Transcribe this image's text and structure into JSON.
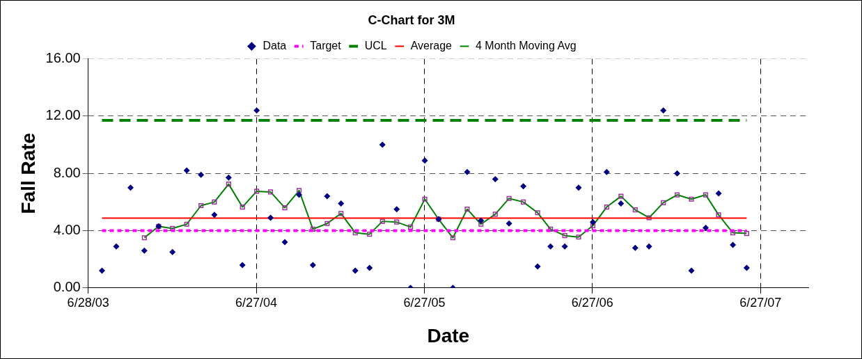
{
  "chart_data": {
    "type": "line",
    "title": "C-Chart for 3M",
    "xlabel": "Date",
    "ylabel": "Fall Rate",
    "x": [
      "2003-07-28",
      "2003-08-28",
      "2003-09-28",
      "2003-10-28",
      "2003-11-28",
      "2003-12-28",
      "2004-01-28",
      "2004-02-28",
      "2004-03-28",
      "2004-04-28",
      "2004-05-28",
      "2004-06-28",
      "2004-07-28",
      "2004-08-28",
      "2004-09-28",
      "2004-10-28",
      "2004-11-28",
      "2004-12-28",
      "2005-01-28",
      "2005-02-28",
      "2005-03-28",
      "2005-04-28",
      "2005-05-28",
      "2005-06-28",
      "2005-07-28",
      "2005-08-28",
      "2005-09-28",
      "2005-10-28",
      "2005-11-28",
      "2005-12-28",
      "2006-01-28",
      "2006-02-28",
      "2006-03-28",
      "2006-04-28",
      "2006-05-28",
      "2006-06-28",
      "2006-07-28",
      "2006-08-28",
      "2006-09-28",
      "2006-10-28",
      "2006-11-28",
      "2006-12-28",
      "2007-01-28",
      "2007-02-28",
      "2007-03-28",
      "2007-04-28",
      "2007-05-28"
    ],
    "series": [
      {
        "name": "Data",
        "type": "scatter",
        "marker": "diamond",
        "color": "#000080",
        "values": [
          1.2,
          2.9,
          7.0,
          2.6,
          4.3,
          2.5,
          8.2,
          7.9,
          5.1,
          7.7,
          1.6,
          12.4,
          4.9,
          3.2,
          6.5,
          1.6,
          6.4,
          5.9,
          1.2,
          1.4,
          10.0,
          5.5,
          0.0,
          8.9,
          4.8,
          0.0,
          8.1,
          4.7,
          7.6,
          4.5,
          7.1,
          1.5,
          2.9,
          2.9,
          7.0,
          4.6,
          8.1,
          5.9,
          2.8,
          2.9,
          12.4,
          8.0,
          1.2,
          4.2,
          6.6,
          3.0,
          1.4
        ]
      },
      {
        "name": "Target",
        "type": "line",
        "marker": "none",
        "line_style": "dotted",
        "color": "#ff00ff",
        "values": [
          4.0,
          4.0,
          4.0,
          4.0,
          4.0,
          4.0,
          4.0,
          4.0,
          4.0,
          4.0,
          4.0,
          4.0,
          4.0,
          4.0,
          4.0,
          4.0,
          4.0,
          4.0,
          4.0,
          4.0,
          4.0,
          4.0,
          4.0,
          4.0,
          4.0,
          4.0,
          4.0,
          4.0,
          4.0,
          4.0,
          4.0,
          4.0,
          4.0,
          4.0,
          4.0,
          4.0,
          4.0,
          4.0,
          4.0,
          4.0,
          4.0,
          4.0,
          4.0,
          4.0,
          4.0,
          4.0,
          4.0
        ]
      },
      {
        "name": "UCL",
        "type": "line",
        "marker": "none",
        "line_style": "dashed",
        "color": "#008000",
        "values": [
          11.7,
          11.7,
          11.7,
          11.7,
          11.7,
          11.7,
          11.7,
          11.7,
          11.7,
          11.7,
          11.7,
          11.7,
          11.7,
          11.7,
          11.7,
          11.7,
          11.7,
          11.7,
          11.7,
          11.7,
          11.7,
          11.7,
          11.7,
          11.7,
          11.7,
          11.7,
          11.7,
          11.7,
          11.7,
          11.7,
          11.7,
          11.7,
          11.7,
          11.7,
          11.7,
          11.7,
          11.7,
          11.7,
          11.7,
          11.7,
          11.7,
          11.7,
          11.7,
          11.7,
          11.7,
          11.7,
          11.7
        ]
      },
      {
        "name": "Average",
        "type": "line",
        "marker": "none",
        "line_style": "solid",
        "color": "#ff0000",
        "values": [
          4.87,
          4.87,
          4.87,
          4.87,
          4.87,
          4.87,
          4.87,
          4.87,
          4.87,
          4.87,
          4.87,
          4.87,
          4.87,
          4.87,
          4.87,
          4.87,
          4.87,
          4.87,
          4.87,
          4.87,
          4.87,
          4.87,
          4.87,
          4.87,
          4.87,
          4.87,
          4.87,
          4.87,
          4.87,
          4.87,
          4.87,
          4.87,
          4.87,
          4.87,
          4.87,
          4.87,
          4.87,
          4.87,
          4.87,
          4.87,
          4.87,
          4.87,
          4.87,
          4.87,
          4.87,
          4.87,
          4.87
        ]
      },
      {
        "name": "4 Month Moving Avg",
        "type": "line",
        "marker": "square",
        "line_style": "solid",
        "color": "#008000",
        "values": [
          null,
          null,
          null,
          3.5,
          4.3,
          4.15,
          4.45,
          5.75,
          6.0,
          7.25,
          5.65,
          6.75,
          6.7,
          5.6,
          6.8,
          4.1,
          4.5,
          5.2,
          3.85,
          3.75,
          4.65,
          4.6,
          4.25,
          6.2,
          4.8,
          3.5,
          5.5,
          4.45,
          5.15,
          6.25,
          6.0,
          5.25,
          4.1,
          3.65,
          3.55,
          4.35,
          5.65,
          6.4,
          5.45,
          4.9,
          5.95,
          6.5,
          6.2,
          6.5,
          5.1,
          3.85,
          3.8
        ]
      }
    ],
    "xlim": [
      "2003-06-28",
      "2007-10-09"
    ],
    "xticks": [
      {
        "value": "2003-06-28",
        "label": "6/28/03"
      },
      {
        "value": "2004-06-27",
        "label": "6/27/04"
      },
      {
        "value": "2005-06-27",
        "label": "6/27/05"
      },
      {
        "value": "2006-06-27",
        "label": "6/27/06"
      },
      {
        "value": "2007-06-27",
        "label": "6/27/07"
      }
    ],
    "ylim": [
      0,
      16
    ],
    "yticks": [
      {
        "value": 0,
        "label": "0.00"
      },
      {
        "value": 4,
        "label": "4.00"
      },
      {
        "value": 8,
        "label": "8.00"
      },
      {
        "value": 12,
        "label": "12.00"
      },
      {
        "value": 16,
        "label": "16.00"
      }
    ],
    "grid": true,
    "legend": "top"
  }
}
